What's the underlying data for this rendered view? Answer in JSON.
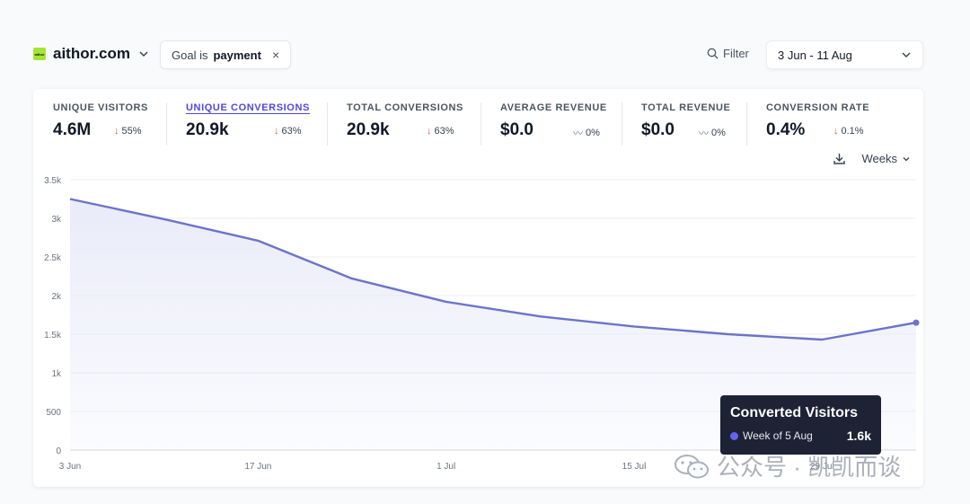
{
  "header": {
    "site": "aithor.com",
    "favicon_text": "aithor",
    "goal_prefix": "Goal is",
    "goal_value": "payment",
    "goal_remove": "×",
    "filter_label": "Filter",
    "date_range": "3 Jun - 11 Aug"
  },
  "metrics": [
    {
      "label": "UNIQUE VISITORS",
      "value": "4.6M",
      "change": "55%",
      "trend": "down"
    },
    {
      "label": "UNIQUE CONVERSIONS",
      "value": "20.9k",
      "change": "63%",
      "trend": "down",
      "active": true
    },
    {
      "label": "TOTAL CONVERSIONS",
      "value": "20.9k",
      "change": "63%",
      "trend": "down"
    },
    {
      "label": "AVERAGE REVENUE",
      "value": "$0.0",
      "change": "0%",
      "trend": "flat"
    },
    {
      "label": "TOTAL REVENUE",
      "value": "$0.0",
      "change": "0%",
      "trend": "flat"
    },
    {
      "label": "CONVERSION RATE",
      "value": "0.4%",
      "change": "0.1%",
      "trend": "down"
    }
  ],
  "controls": {
    "interval": "Weeks"
  },
  "chart_data": {
    "type": "area",
    "y_ticks": [
      "0",
      "500",
      "1k",
      "1.5k",
      "2k",
      "2.5k",
      "3k",
      "3.5k"
    ],
    "ylim": [
      0,
      3500
    ],
    "x_tick_labels": [
      "3 Jun",
      "17 Jun",
      "1 Jul",
      "15 Jul",
      "29 Jul"
    ],
    "x": [
      "3 Jun",
      "10 Jun",
      "17 Jun",
      "24 Jun",
      "1 Jul",
      "8 Jul",
      "15 Jul",
      "22 Jul",
      "29 Jul",
      "5 Aug"
    ],
    "series": [
      {
        "values": [
          3250,
          2990,
          2710,
          2220,
          1920,
          1730,
          1600,
          1500,
          1430,
          1650
        ]
      }
    ],
    "grid": true,
    "line_color": "#6b74c9",
    "fill_color": "#e8eaf8"
  },
  "tooltip": {
    "title": "Converted Visitors",
    "label": "Week of 5 Aug",
    "value": "1.6k"
  },
  "watermark": {
    "text": "公众号 · 凯凯而谈"
  }
}
